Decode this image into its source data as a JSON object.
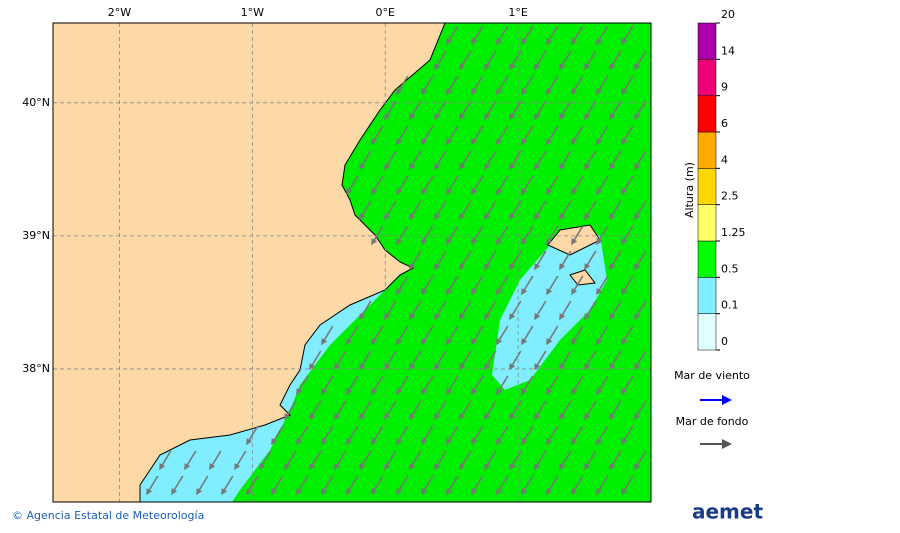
{
  "map": {
    "lonlim": [
      -2.5,
      2.0
    ],
    "latlim": [
      37.0,
      40.6
    ],
    "lon_ticks": [
      {
        "value": -2,
        "label": "2°W"
      },
      {
        "value": -1,
        "label": "1°W"
      },
      {
        "value": 0,
        "label": "0°E"
      },
      {
        "value": 1,
        "label": "1°E"
      }
    ],
    "lat_ticks": [
      {
        "value": 40,
        "label": "40°N"
      },
      {
        "value": 39,
        "label": "39°N"
      },
      {
        "value": 38,
        "label": "38°N"
      }
    ],
    "grid": true
  },
  "colorbar": {
    "title": "Altura (m)",
    "levels": [
      0,
      0.1,
      0.5,
      1.25,
      2.5,
      4,
      6,
      9,
      14,
      20
    ],
    "colors": [
      "#e0ffff",
      "#80eeff",
      "#00ff00",
      "#ffff66",
      "#ffd700",
      "#ffaa00",
      "#ff0000",
      "#ee0077",
      "#aa00aa"
    ]
  },
  "legend": [
    {
      "label": "Mar de viento",
      "color": "#0000ee"
    },
    {
      "label": "Mar de fondo",
      "color": "#555555"
    }
  ],
  "footer": {
    "credit": "© Agencia Estatal de Meteorología",
    "logo": "aemet"
  }
}
